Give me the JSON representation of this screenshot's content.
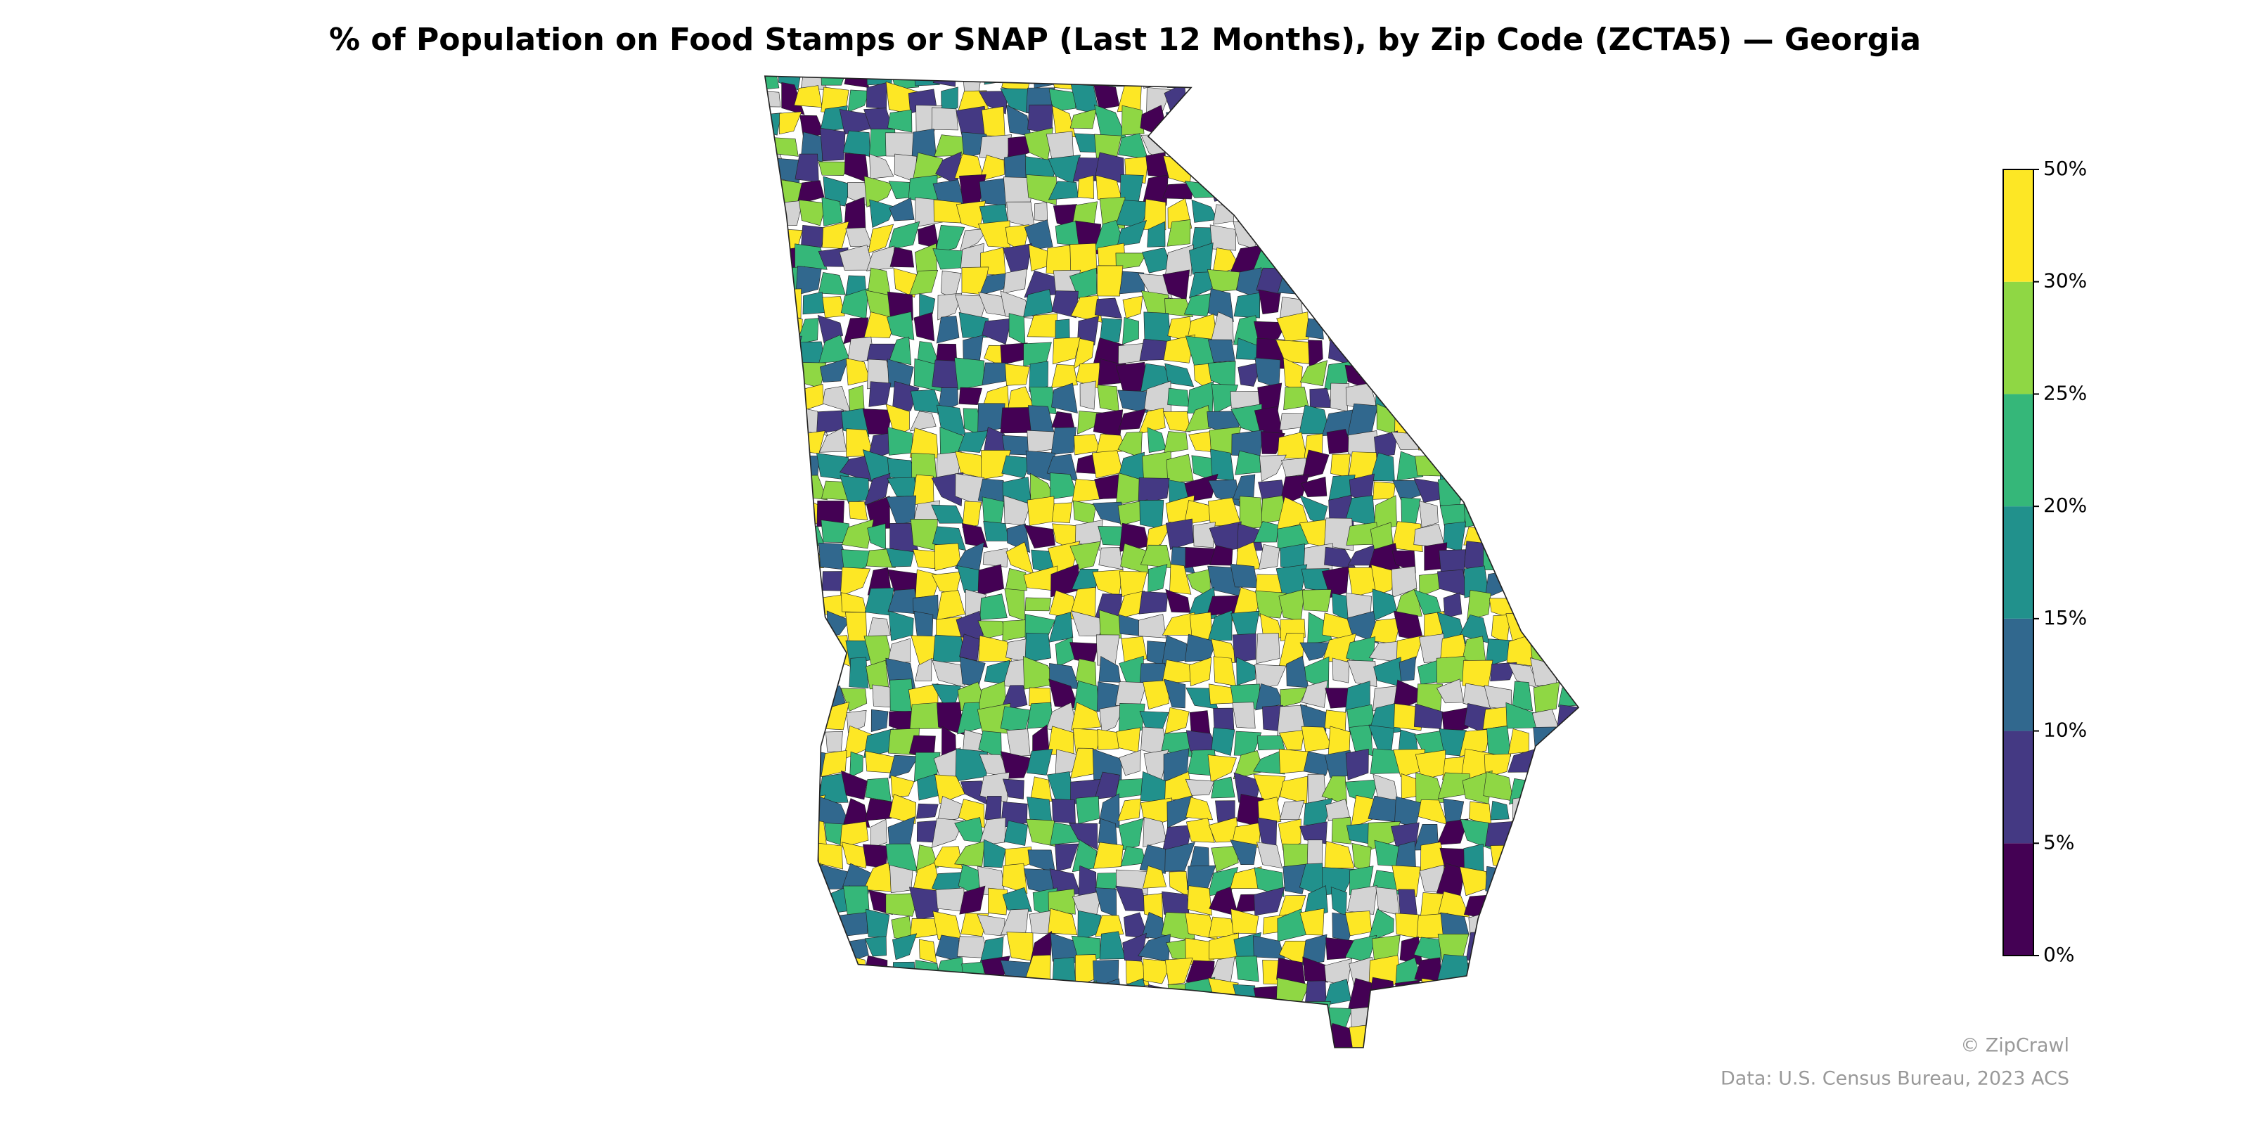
{
  "map": {
    "title": "% of Population on Food Stamps or SNAP (Last 12 Months), by Zip Code (ZCTA5) — Georgia",
    "legend": {
      "ticks": [
        {
          "value": 0,
          "label": "0%"
        },
        {
          "value": 5,
          "label": "5%"
        },
        {
          "value": 10,
          "label": "10%"
        },
        {
          "value": 15,
          "label": "15%"
        },
        {
          "value": 20,
          "label": "20%"
        },
        {
          "value": 25,
          "label": "25%"
        },
        {
          "value": 30,
          "label": "30%"
        },
        {
          "value": 50,
          "label": "50%"
        }
      ],
      "colors": [
        "#440154",
        "#443983",
        "#31688e",
        "#21918c",
        "#35b779",
        "#8fd744",
        "#fde725"
      ]
    },
    "no_data_color": "#d3d3d3",
    "credit": "© ZipCrawl",
    "source": "Data: U.S. Census Bureau, 2023 ACS"
  }
}
